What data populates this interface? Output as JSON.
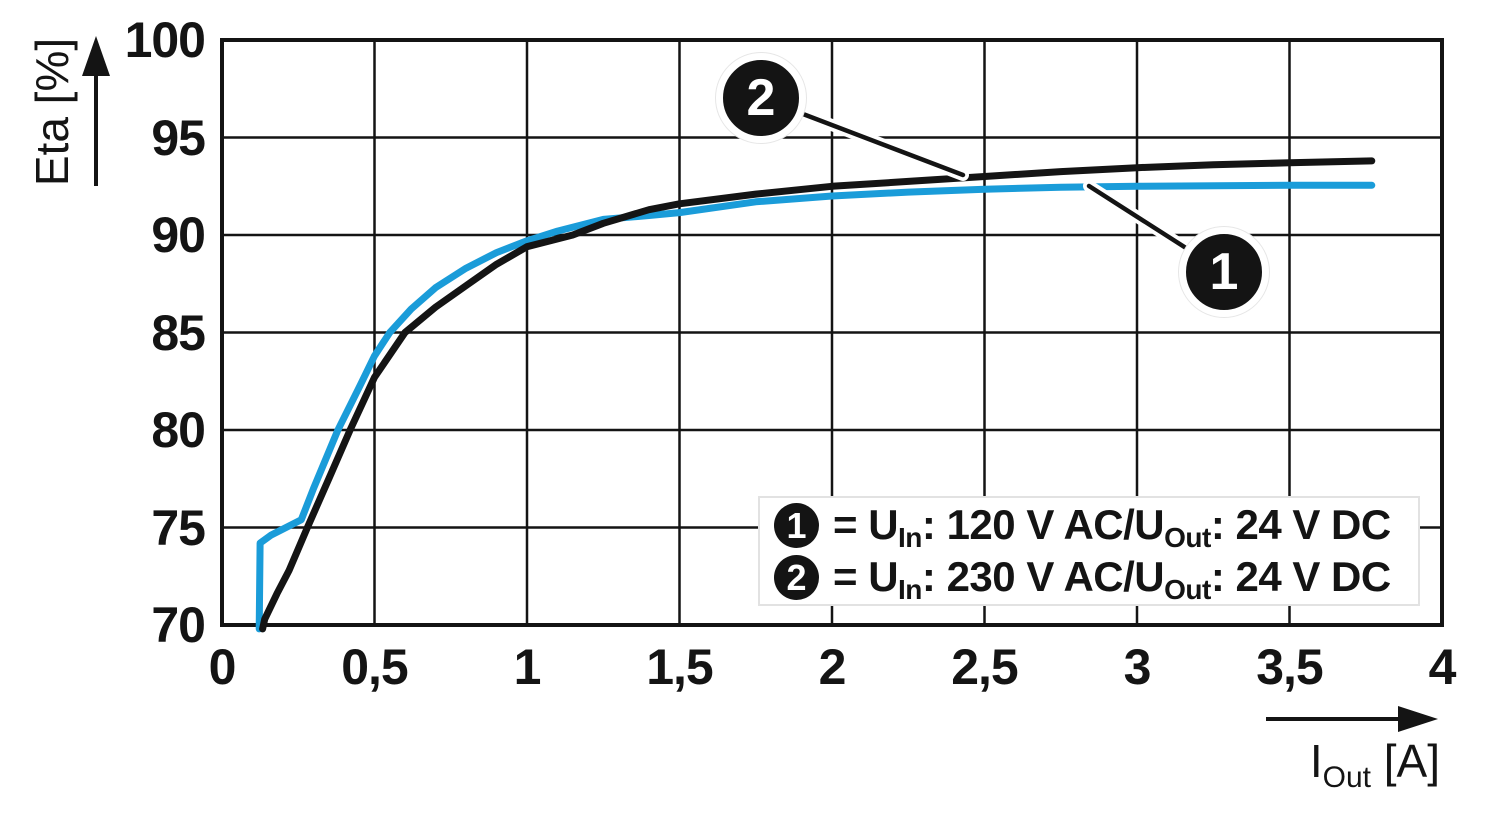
{
  "chart_data": {
    "type": "line",
    "title": "",
    "ylabel": "Eta [%]",
    "xlabel_parts": [
      "I",
      "Out",
      " [A]"
    ],
    "xlim": [
      0,
      4
    ],
    "ylim": [
      70,
      100
    ],
    "x_ticks": [
      0,
      0.5,
      1,
      1.5,
      2,
      2.5,
      3,
      3.5,
      4
    ],
    "x_tick_labels": [
      "0",
      "0,5",
      "1",
      "1,5",
      "2",
      "2,5",
      "3",
      "3,5",
      "4"
    ],
    "y_ticks": [
      100,
      95,
      90,
      85,
      80,
      75,
      70
    ],
    "y_tick_labels": [
      "100",
      "95",
      "90",
      "85",
      "80",
      "75",
      "70"
    ],
    "grid": true,
    "legend_position": "inside-bottom-right",
    "series": [
      {
        "id": "1",
        "name": "UIn: 120 V AC / UOut: 24 V DC",
        "color": "#1a9cd9",
        "points": [
          [
            0.122,
            69.8
          ],
          [
            0.125,
            74.2
          ],
          [
            0.16,
            74.6
          ],
          [
            0.26,
            75.4
          ],
          [
            0.3,
            77.0
          ],
          [
            0.38,
            80.0
          ],
          [
            0.45,
            82.2
          ],
          [
            0.5,
            83.8
          ],
          [
            0.55,
            85.0
          ],
          [
            0.62,
            86.2
          ],
          [
            0.7,
            87.3
          ],
          [
            0.8,
            88.3
          ],
          [
            0.9,
            89.1
          ],
          [
            1.0,
            89.7
          ],
          [
            1.1,
            90.2
          ],
          [
            1.25,
            90.8
          ],
          [
            1.4,
            91.0
          ],
          [
            1.5,
            91.15
          ],
          [
            1.75,
            91.7
          ],
          [
            2.0,
            92.0
          ],
          [
            2.25,
            92.2
          ],
          [
            2.5,
            92.35
          ],
          [
            2.75,
            92.45
          ],
          [
            3.0,
            92.5
          ],
          [
            3.5,
            92.55
          ],
          [
            3.77,
            92.55
          ]
        ]
      },
      {
        "id": "2",
        "name": "UIn: 230 V AC / UOut: 24 V DC",
        "color": "#141414",
        "points": [
          [
            0.133,
            69.8
          ],
          [
            0.14,
            70.3
          ],
          [
            0.18,
            71.6
          ],
          [
            0.22,
            72.8
          ],
          [
            0.28,
            75.0
          ],
          [
            0.35,
            77.5
          ],
          [
            0.42,
            80.0
          ],
          [
            0.5,
            82.7
          ],
          [
            0.6,
            85.0
          ],
          [
            0.7,
            86.3
          ],
          [
            0.8,
            87.4
          ],
          [
            0.9,
            88.5
          ],
          [
            1.0,
            89.4
          ],
          [
            1.15,
            90.0
          ],
          [
            1.25,
            90.6
          ],
          [
            1.4,
            91.3
          ],
          [
            1.5,
            91.6
          ],
          [
            1.75,
            92.1
          ],
          [
            2.0,
            92.5
          ],
          [
            2.25,
            92.75
          ],
          [
            2.5,
            93.0
          ],
          [
            2.75,
            93.25
          ],
          [
            3.0,
            93.45
          ],
          [
            3.25,
            93.6
          ],
          [
            3.5,
            93.7
          ],
          [
            3.77,
            93.8
          ]
        ]
      }
    ]
  },
  "callouts": [
    {
      "label": "2"
    },
    {
      "label": "1"
    }
  ],
  "legend": {
    "rows": [
      {
        "num": "1",
        "parts": [
          "= U",
          "In",
          ": 120 V AC/U",
          "Out",
          ": 24 V DC"
        ]
      },
      {
        "num": "2",
        "parts": [
          "= U",
          "In",
          ": 230 V AC/U",
          "Out",
          ": 24 V DC"
        ]
      }
    ]
  },
  "colors": {
    "series_blue": "#1a9cd9",
    "series_black": "#141414",
    "grid": "#141414",
    "background": "#ffffff"
  }
}
